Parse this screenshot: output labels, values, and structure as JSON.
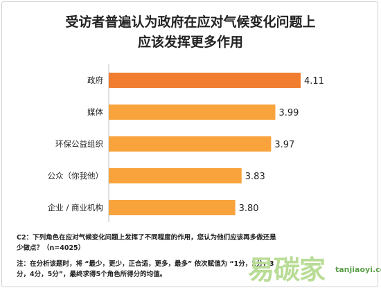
{
  "chart_data": {
    "type": "bar",
    "orientation": "horizontal",
    "title": [
      "受访者普遍认为政府在应对气候变化问题上",
      "应该发挥更多作用"
    ],
    "categories": [
      "政府",
      "媒体",
      "环保公益组织",
      "公众（你我他）",
      "企业 / 商业机构"
    ],
    "values": [
      4.11,
      3.99,
      3.97,
      3.83,
      3.8
    ],
    "value_labels": [
      "4.11",
      "3.99",
      "3.97",
      "3.83",
      "3.80"
    ],
    "colors": [
      "#f07d30",
      "#f8a33c",
      "#f8a33c",
      "#f8a33c",
      "#f8a33c"
    ],
    "xlim": [
      3.2,
      4.11
    ],
    "grid": false,
    "legend": "none"
  },
  "notes": {
    "question": "C2：下列角色在应对气候变化问题上发挥了不同程度的作用，您认为他们应该再多做还是少做点？（n=4025）",
    "method": "注：在分析该题时，将 “最少，更少，正合适，更多，最多” 依次赋值为 “1分，2分，3分，4分，5分”，最终求得5个角色所得分的均值。"
  },
  "watermark": {
    "name": "易碳家",
    "domain": "tanjiaoyi.com"
  }
}
